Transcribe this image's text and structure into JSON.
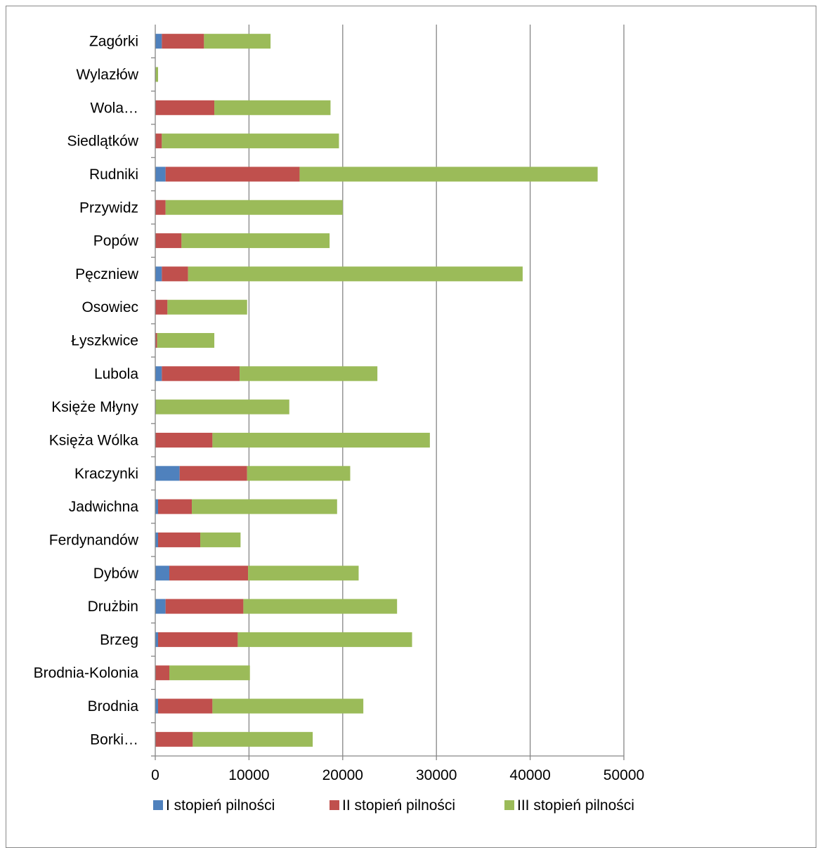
{
  "chart_data": {
    "type": "bar",
    "orientation": "horizontal",
    "stacked": true,
    "categories": [
      "Borki…",
      "Brodnia",
      "Brodnia-Kolonia",
      "Brzeg",
      "Drużbin",
      "Dybów",
      "Ferdynandów",
      "Jadwichna",
      "Kraczynki",
      "Księża Wólka",
      "Księże Młyny",
      "Lubola",
      "Łyszkwice",
      "Osowiec",
      "Pęczniew",
      "Popów",
      "Przywidz",
      "Rudniki",
      "Siedlątków",
      "Wola…",
      "Wylazłów",
      "Zagórki"
    ],
    "series": [
      {
        "name": "I stopień pilności",
        "color": "#4f81bd",
        "values": [
          0,
          300,
          0,
          300,
          1100,
          1500,
          300,
          300,
          2600,
          0,
          0,
          700,
          0,
          0,
          700,
          0,
          0,
          1100,
          0,
          0,
          0,
          700
        ]
      },
      {
        "name": "II stopień pilności",
        "color": "#c0504d",
        "values": [
          4000,
          5800,
          1500,
          8500,
          8300,
          8400,
          4500,
          3600,
          7200,
          6100,
          0,
          8300,
          200,
          1300,
          2800,
          2800,
          1100,
          14300,
          700,
          6300,
          0,
          4500
        ]
      },
      {
        "name": "III stopień pilności",
        "color": "#9bbb59",
        "values": [
          12800,
          16100,
          8600,
          18600,
          16400,
          11800,
          4300,
          15500,
          11000,
          23200,
          14300,
          14700,
          6100,
          8500,
          35700,
          15800,
          18900,
          31800,
          18900,
          12400,
          300,
          7100
        ]
      }
    ],
    "x_ticks": [
      "0",
      "10000",
      "20000",
      "30000",
      "40000",
      "50000"
    ],
    "xlim": [
      0,
      50000
    ],
    "title": "",
    "xlabel": "",
    "ylabel": "",
    "grid": "vertical",
    "legend_position": "bottom"
  }
}
